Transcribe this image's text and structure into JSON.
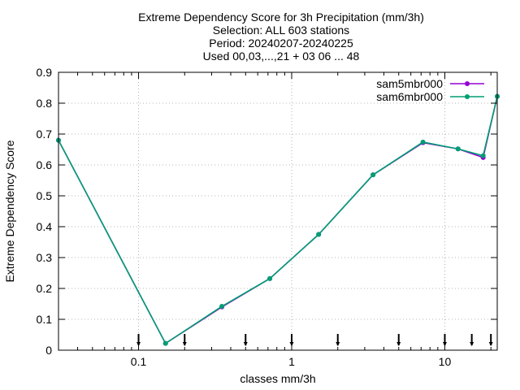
{
  "chart_data": {
    "type": "line",
    "title_lines": [
      "Extreme Dependency Score  for 3h Precipitation (mm/3h)",
      "Selection: ALL    603 stations",
      "Period: 20240207-20240225",
      "Used 00,03,...,21 + 03 06 ... 48"
    ],
    "xlabel": "classes mm/3h",
    "ylabel": "Extreme Dependency Score",
    "x_scale": "log",
    "xlim": [
      0.03,
      22
    ],
    "ylim": [
      0,
      0.9
    ],
    "x_ticks": [
      0.1,
      1,
      10
    ],
    "x_tick_labels": [
      "0.1",
      "1",
      "10"
    ],
    "y_ticks": [
      0,
      0.1,
      0.2,
      0.3,
      0.4,
      0.5,
      0.6,
      0.7,
      0.8,
      0.9
    ],
    "y_tick_labels": [
      "0",
      "0.1",
      "0.2",
      "0.3",
      "0.4",
      "0.5",
      "0.6",
      "0.7",
      "0.8",
      "0.9"
    ],
    "grid": true,
    "legend_position": "top-right",
    "class_markers": [
      0.1,
      0.2,
      0.5,
      1,
      2,
      5,
      10,
      15,
      20
    ],
    "series": [
      {
        "name": "sam5mbr000",
        "color": "#9400d3",
        "x": [
          0.03,
          0.15,
          0.35,
          0.72,
          1.5,
          3.4,
          7.2,
          12.2,
          17.8,
          22
        ],
        "y": [
          0.68,
          0.022,
          0.14,
          0.232,
          0.375,
          0.568,
          0.672,
          0.652,
          0.624,
          0.822
        ]
      },
      {
        "name": "sam6mbr000",
        "color": "#009e73",
        "x": [
          0.03,
          0.15,
          0.35,
          0.72,
          1.5,
          3.4,
          7.2,
          12.2,
          17.8,
          22
        ],
        "y": [
          0.68,
          0.022,
          0.142,
          0.232,
          0.375,
          0.568,
          0.674,
          0.652,
          0.63,
          0.822
        ]
      }
    ]
  }
}
